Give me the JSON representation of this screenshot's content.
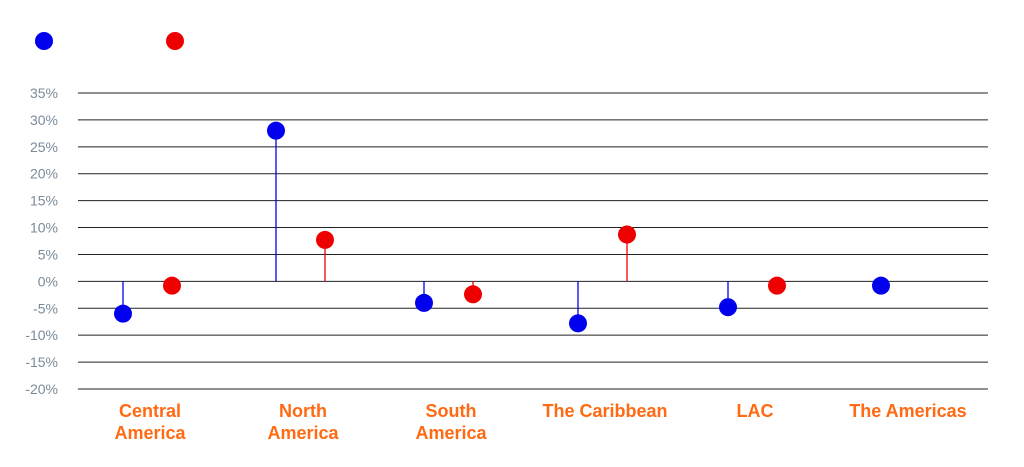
{
  "colors": {
    "series_1": "#0000ee",
    "series_2": "#ee0000",
    "grid": "#222222",
    "tick_text": "#7a8a99",
    "category_text": "#ff6a13"
  },
  "chart_data": {
    "type": "scatter",
    "style": "lollipop",
    "title": "",
    "xlabel": "",
    "ylabel": "",
    "ylim": [
      -20,
      35
    ],
    "y_ticks": [
      "35%",
      "30%",
      "25%",
      "20%",
      "15%",
      "10%",
      "5%",
      "0%",
      "-5%",
      "-10%",
      "-15%",
      "-20%"
    ],
    "y_tick_values": [
      35,
      30,
      25,
      20,
      15,
      10,
      5,
      0,
      -5,
      -10,
      -15,
      -20
    ],
    "grid": true,
    "legend_position": "top-left",
    "categories": [
      [
        "Central",
        "America"
      ],
      [
        "North",
        "America"
      ],
      [
        "South",
        "America"
      ],
      [
        "The Caribbean"
      ],
      [
        "LAC"
      ],
      [
        "The Americas"
      ]
    ],
    "series": [
      {
        "values": [
          -6,
          28,
          -4,
          -7.8,
          -4.8,
          -0.8
        ]
      },
      {
        "values": [
          -0.8,
          7.7,
          -2.4,
          8.7,
          -0.8,
          null
        ]
      }
    ]
  }
}
